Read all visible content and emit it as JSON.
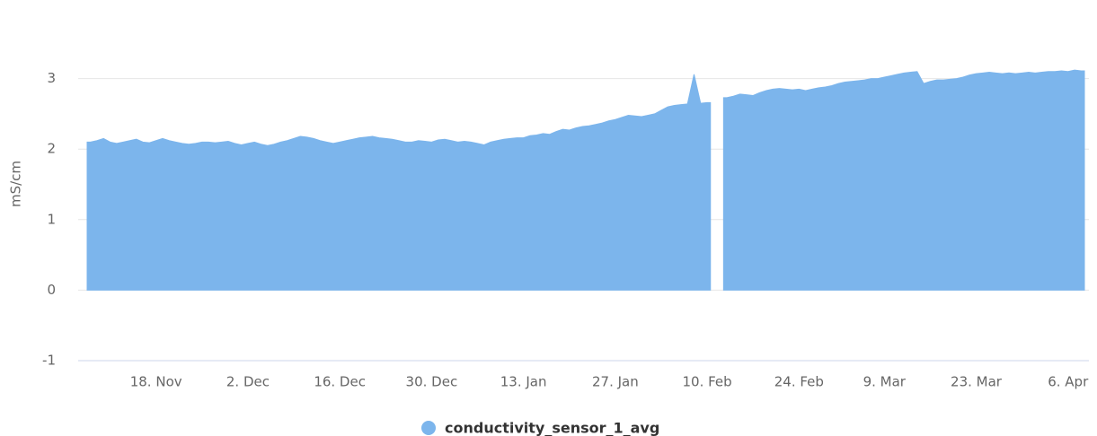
{
  "chart_data": {
    "type": "area",
    "y_label": "mS/cm",
    "categories": [
      null,
      null,
      null,
      null,
      null,
      null,
      null,
      null,
      null,
      null,
      "18. Nov",
      null,
      null,
      null,
      null,
      null,
      null,
      null,
      null,
      null,
      null,
      null,
      null,
      null,
      "2. Dec",
      null,
      null,
      null,
      null,
      null,
      null,
      null,
      null,
      null,
      null,
      null,
      null,
      null,
      "16. Dec",
      null,
      null,
      null,
      null,
      null,
      null,
      null,
      null,
      null,
      null,
      null,
      null,
      null,
      "30. Dec",
      null,
      null,
      null,
      null,
      null,
      null,
      null,
      null,
      null,
      null,
      null,
      null,
      null,
      "13. Jan",
      null,
      null,
      null,
      null,
      null,
      null,
      null,
      null,
      null,
      null,
      null,
      null,
      null,
      "27. Jan",
      null,
      null,
      null,
      null,
      null,
      null,
      null,
      null,
      null,
      null,
      null,
      null,
      null,
      "10. Feb",
      null,
      null,
      null,
      null,
      null,
      null,
      null,
      null,
      null,
      null,
      null,
      null,
      null,
      "24. Feb",
      null,
      null,
      null,
      null,
      null,
      null,
      null,
      null,
      null,
      null,
      null,
      null,
      "9. Mar",
      null,
      null,
      null,
      null,
      null,
      null,
      null,
      null,
      null,
      null,
      null,
      null,
      null,
      "23. Mar",
      null,
      null,
      null,
      null,
      null,
      null,
      null,
      null,
      null,
      null,
      null,
      null,
      null,
      "6. Apr",
      null,
      null
    ],
    "series": [
      {
        "name": "conductivity_sensor_1_avg",
        "color": "#7cb5ec",
        "values": [
          2.1,
          2.12,
          2.15,
          2.1,
          2.08,
          2.1,
          2.12,
          2.14,
          2.1,
          2.09,
          2.12,
          2.15,
          2.12,
          2.1,
          2.08,
          2.07,
          2.08,
          2.1,
          2.1,
          2.09,
          2.1,
          2.11,
          2.08,
          2.06,
          2.08,
          2.1,
          2.07,
          2.05,
          2.07,
          2.1,
          2.12,
          2.15,
          2.18,
          2.17,
          2.15,
          2.12,
          2.1,
          2.08,
          2.1,
          2.12,
          2.14,
          2.16,
          2.17,
          2.18,
          2.16,
          2.15,
          2.14,
          2.12,
          2.1,
          2.1,
          2.12,
          2.11,
          2.1,
          2.13,
          2.14,
          2.12,
          2.1,
          2.11,
          2.1,
          2.08,
          2.06,
          2.1,
          2.12,
          2.14,
          2.15,
          2.16,
          2.16,
          2.19,
          2.2,
          2.22,
          2.21,
          2.25,
          2.28,
          2.27,
          2.3,
          2.32,
          2.33,
          2.35,
          2.37,
          2.4,
          2.42,
          2.45,
          2.48,
          2.47,
          2.46,
          2.48,
          2.5,
          2.55,
          2.6,
          2.62,
          2.63,
          2.64,
          3.06,
          2.65,
          2.66,
          null,
          null,
          2.73,
          2.75,
          2.78,
          2.77,
          2.76,
          2.8,
          2.83,
          2.85,
          2.86,
          2.85,
          2.84,
          2.85,
          2.83,
          2.85,
          2.87,
          2.88,
          2.9,
          2.93,
          2.95,
          2.96,
          2.97,
          2.98,
          3.0,
          3.0,
          3.02,
          3.04,
          3.06,
          3.08,
          3.09,
          3.1,
          2.93,
          2.96,
          2.98,
          2.98,
          2.99,
          3.0,
          3.02,
          3.05,
          3.07,
          3.08,
          3.09,
          3.08,
          3.07,
          3.08,
          3.07,
          3.08,
          3.09,
          3.08,
          3.09,
          3.1,
          3.1,
          3.11,
          3.1,
          3.12,
          3.11
        ]
      }
    ],
    "ylim": [
      -1,
      4
    ],
    "yticks": [
      -1,
      0,
      1,
      2,
      3
    ],
    "grid": true,
    "legend": "bottom"
  }
}
